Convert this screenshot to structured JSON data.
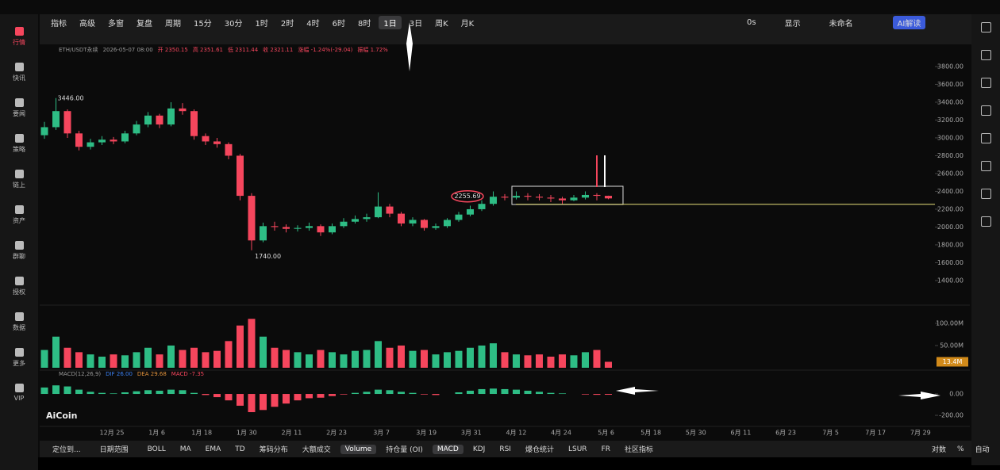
{
  "toolbar": {
    "left": [
      "指标",
      "高级",
      "多窗",
      "复盘",
      "周期"
    ],
    "periods": [
      "15分",
      "30分",
      "1时",
      "2时",
      "4时",
      "6时",
      "8时",
      "1日",
      "3日",
      "周K",
      "月K"
    ],
    "active_period": "1日",
    "right": [
      "0s",
      "显示",
      "未命名",
      "AI解读"
    ]
  },
  "sidebar": [
    "行情",
    "快讯",
    "要闻",
    "策略",
    "链上",
    "资产",
    "群聊",
    "授权",
    "数据",
    "更多",
    "VIP"
  ],
  "chart": {
    "type": "candlestick",
    "symbol_info": [
      "ETH/USDT永续",
      "2026-05-07 08:00",
      "开 2350.15",
      "高 2351.61",
      "低 2311.44",
      "收 2321.11",
      "涨幅 -1.24%(-29.04)",
      "振幅 1.72%"
    ],
    "up_color": "#2ebd85",
    "down_color": "#f6465d",
    "ylim": [
      1213,
      3924
    ],
    "yticks": [
      {
        "value": 3800,
        "label": "3800.00"
      },
      {
        "value": 3600,
        "label": "3600.00"
      },
      {
        "value": 3400,
        "label": "3400.00"
      },
      {
        "value": 3200,
        "label": "3200.00"
      },
      {
        "value": 3000,
        "label": "3000.00"
      },
      {
        "value": 2800,
        "label": "2800.00"
      },
      {
        "value": 2600,
        "label": "2600.00"
      },
      {
        "value": 2400,
        "label": "2400.00"
      },
      {
        "value": 2200,
        "label": "2200.00"
      },
      {
        "value": 2000,
        "label": "2000.00"
      },
      {
        "value": 1800,
        "label": "1800.00"
      },
      {
        "value": 1600,
        "label": "1600.00"
      },
      {
        "value": 1400,
        "label": "1400.00"
      }
    ],
    "open": [
      3030,
      3120,
      3300,
      3050,
      2900,
      2950,
      2980,
      2960,
      3050,
      3150,
      3250,
      3150,
      3330,
      3300,
      3020,
      2960,
      2930,
      2800,
      2350,
      1850,
      2010,
      2000,
      1980,
      1990,
      2010,
      1940,
      2010,
      2060,
      2090,
      2110,
      2230,
      2150,
      2040,
      2080,
      1990,
      2010,
      2080,
      2140,
      2200,
      2260,
      2340,
      2330,
      2350,
      2340,
      2330,
      2320,
      2300,
      2330,
      2360,
      2350.15
    ],
    "high": [
      3180,
      3446,
      3320,
      3080,
      2990,
      3020,
      3010,
      3080,
      3190,
      3290,
      3270,
      3400,
      3390,
      3320,
      3050,
      3000,
      2950,
      2820,
      2380,
      2050,
      2060,
      2030,
      2020,
      2050,
      2030,
      2040,
      2100,
      2130,
      2150,
      2390,
      2260,
      2170,
      2110,
      2090,
      2040,
      2100,
      2170,
      2240,
      2300,
      2400,
      2370,
      2400,
      2380,
      2370,
      2360,
      2340,
      2360,
      2400,
      2380,
      2351.61
    ],
    "low": [
      2990,
      3090,
      3000,
      2860,
      2870,
      2920,
      2930,
      2940,
      3030,
      3120,
      3110,
      3130,
      3260,
      2980,
      2920,
      2890,
      2760,
      2300,
      1740,
      1830,
      1960,
      1940,
      1950,
      1960,
      1900,
      1920,
      1990,
      2040,
      2060,
      2100,
      2110,
      2010,
      2010,
      1960,
      1970,
      1990,
      2060,
      2120,
      2180,
      2240,
      2300,
      2310,
      2300,
      2300,
      2280,
      2260,
      2290,
      2310,
      2300,
      2311.44
    ],
    "close": [
      3120,
      3300,
      3050,
      2900,
      2950,
      2980,
      2960,
      3050,
      3150,
      3250,
      3150,
      3330,
      3300,
      3020,
      2960,
      2930,
      2800,
      2350,
      1850,
      2010,
      2000,
      1980,
      1990,
      2010,
      1940,
      2010,
      2060,
      2090,
      2110,
      2230,
      2150,
      2040,
      2080,
      1990,
      2010,
      2080,
      2140,
      2200,
      2260,
      2340,
      2330,
      2350,
      2340,
      2330,
      2320,
      2300,
      2330,
      2360,
      2350.15,
      2321.11
    ],
    "high_label": "3446.00",
    "low_label": "1740.00",
    "level": 2255.69,
    "level_label": "2255.69",
    "x_labels": [
      "12月 25",
      "1月 6",
      "1月 18",
      "1月 30",
      "2月 11",
      "2月 23",
      "3月 7",
      "3月 19",
      "3月 31",
      "4月 12",
      "4月 24",
      "5月 6",
      "5月 18",
      "5月 30",
      "6月 11",
      "6月 23",
      "7月 5",
      "7月 17",
      "7月 29"
    ],
    "volume": {
      "ylim": [
        0,
        123
      ],
      "yticks": [
        {
          "value": 100,
          "label": "100.00M"
        },
        {
          "value": 50,
          "label": "50.00M"
        }
      ],
      "last_label": "13.4M",
      "values": [
        40,
        70,
        45,
        35,
        30,
        25,
        30,
        28,
        35,
        45,
        30,
        50,
        40,
        45,
        35,
        38,
        60,
        95,
        110,
        70,
        45,
        40,
        35,
        30,
        40,
        35,
        30,
        38,
        40,
        60,
        45,
        50,
        38,
        40,
        30,
        35,
        38,
        45,
        50,
        55,
        35,
        30,
        28,
        30,
        25,
        30,
        28,
        35,
        40,
        13.4
      ]
    },
    "macd": {
      "title": "MACD(12,26,9)",
      "dif_label": "DIF 26.00",
      "dea_label": "DEA 29.68",
      "macd_label": "MACD -7.35",
      "ylim": [
        -318,
        200
      ],
      "yticks": [
        {
          "value": 0,
          "label": "0.00"
        },
        {
          "value": -200,
          "label": "-200.00"
        }
      ],
      "values": [
        60,
        80,
        70,
        40,
        20,
        10,
        5,
        15,
        25,
        35,
        30,
        40,
        35,
        10,
        -10,
        -30,
        -60,
        -110,
        -170,
        -150,
        -120,
        -90,
        -60,
        -40,
        -35,
        -20,
        -5,
        10,
        20,
        40,
        35,
        20,
        10,
        -5,
        -10,
        0,
        15,
        30,
        45,
        50,
        45,
        40,
        30,
        20,
        10,
        5,
        0,
        -5,
        -8,
        -7.35
      ]
    },
    "logo": "AiCoin"
  },
  "bottom_bar": {
    "left": [
      "定位到...",
      "日期范围"
    ],
    "indicators": [
      "BOLL",
      "MA",
      "EMA",
      "TD",
      "筹码分布",
      "大额成交",
      "Volume",
      "持仓量 (OI)",
      "MACD",
      "KDJ",
      "RSI",
      "爆仓统计",
      "LSUR",
      "FR",
      "社区指标"
    ],
    "right": [
      "对数",
      "%",
      "自动"
    ]
  }
}
